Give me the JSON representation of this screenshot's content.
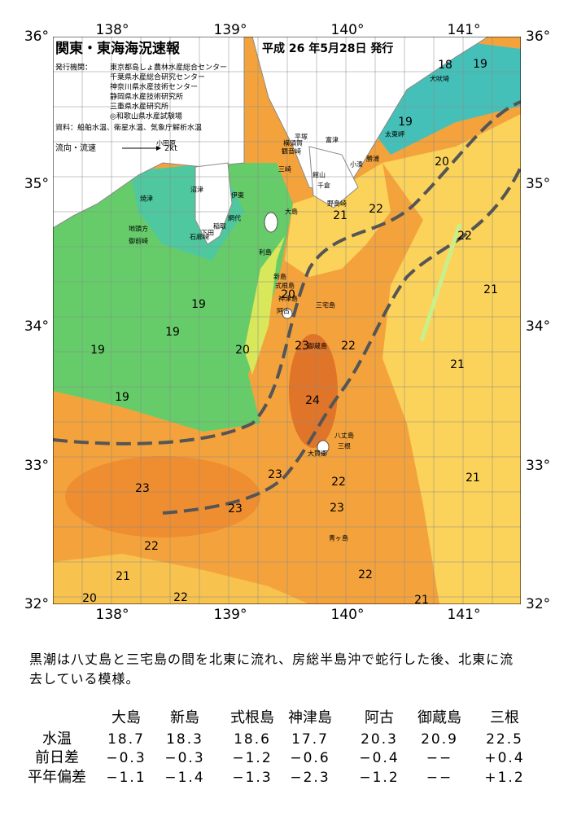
{
  "header": {
    "title": "関東・東海海況速報",
    "issued": "平成 26 年5月28日 発行",
    "agencies_label": "発行機関：",
    "agencies": [
      "東京都島しょ農林水産総合センター",
      "千葉県水産総合研究センター",
      "神奈川県水産技術センター",
      "静岡県水産技術研究所",
      "三重県水産研究所",
      "◎和歌山県水産試験場"
    ],
    "sources": "資料：船舶水温、衛星水温、気象庁解析水温",
    "current_label": "流向・流速",
    "current_scale": "2kt"
  },
  "map": {
    "lon_labels": [
      "138°",
      "139°",
      "140°",
      "141°"
    ],
    "lat_labels": [
      "36°",
      "35°",
      "34°",
      "33°",
      "32°"
    ],
    "places": [
      "小田原",
      "平塚",
      "横須賀",
      "観音崎",
      "富津",
      "三崎",
      "館山",
      "千倉",
      "野島崎",
      "太東岬",
      "勝浦",
      "小湊",
      "犬吠埼",
      "焼津",
      "沼津",
      "伊東",
      "網代",
      "稲取",
      "下田",
      "石廊崎",
      "地頭方",
      "御前崎",
      "大島",
      "利島",
      "新島",
      "式根島",
      "神津島",
      "三宅島",
      "阿古",
      "御蔵島",
      "八丈島",
      "大賀郷",
      "三根",
      "青ヶ島"
    ],
    "isotherm_labels": [
      "18",
      "19",
      "19",
      "20",
      "21",
      "22",
      "22",
      "21",
      "20",
      "19",
      "19",
      "19",
      "20",
      "23",
      "22",
      "21",
      "24",
      "19",
      "23",
      "23",
      "22",
      "21",
      "23",
      "23",
      "22",
      "22",
      "21",
      "20",
      "22",
      "21"
    ]
  },
  "summary": "黒潮は八丈島と三宅島の間を北東に流れ、房総半島沖で蛇行した後、北東に流去している模様。",
  "table": {
    "columns": [
      "大島",
      "新島",
      "式根島",
      "神津島",
      "阿古",
      "御蔵島",
      "三根"
    ],
    "rows": [
      {
        "label": "水温",
        "values": [
          "18.7",
          "18.3",
          "18.6",
          "17.7",
          "20.3",
          "20.9",
          "22.5"
        ]
      },
      {
        "label": "前日差",
        "values": [
          "−0.3",
          "−0.3",
          "−1.2",
          "−0.6",
          "−0.4",
          "−−",
          "+0.4"
        ]
      },
      {
        "label": "平年偏差",
        "values": [
          "−1.1",
          "−1.4",
          "−1.3",
          "−2.3",
          "−1.2",
          "−−",
          "+1.2"
        ]
      }
    ]
  }
}
